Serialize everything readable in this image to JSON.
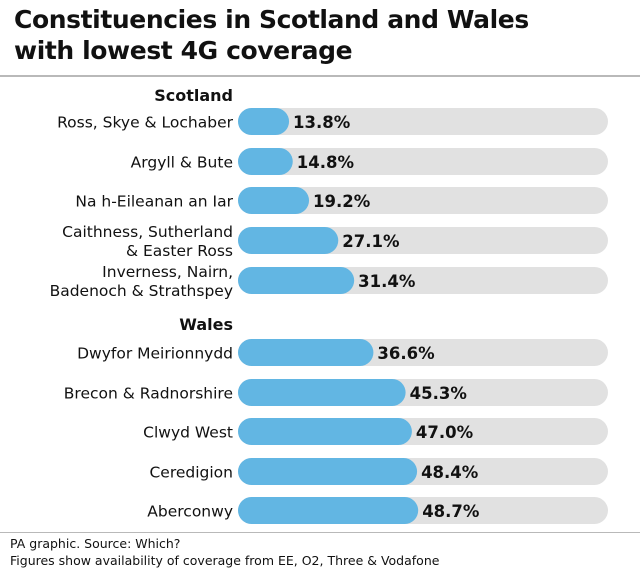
{
  "title_lines": [
    "Constituencies in Scotland and Wales",
    "with lowest 4G coverage"
  ],
  "footnotes": [
    "PA graphic. Source: Which?",
    "Figures show availability of coverage from EE, O2, Three & Vodafone"
  ],
  "colors": {
    "bar": "#62b6e3",
    "track": "#e1e1e1",
    "text": "#111111",
    "rule": "#b9b9b9"
  },
  "chart_data": {
    "type": "bar",
    "orientation": "horizontal",
    "xlim": [
      0,
      100
    ],
    "unit": "%",
    "grid": false,
    "legend": "none",
    "groups": [
      {
        "name": "Scotland",
        "items": [
          {
            "label": [
              "Ross, Skye & Lochaber"
            ],
            "value": 13.8,
            "value_label": "13.8%"
          },
          {
            "label": [
              "Argyll & Bute"
            ],
            "value": 14.8,
            "value_label": "14.8%"
          },
          {
            "label": [
              "Na h-Eileanan an Iar"
            ],
            "value": 19.2,
            "value_label": "19.2%"
          },
          {
            "label": [
              "Caithness, Sutherland",
              "& Easter Ross"
            ],
            "value": 27.1,
            "value_label": "27.1%"
          },
          {
            "label": [
              "Inverness, Nairn,",
              "Badenoch & Strathspey"
            ],
            "value": 31.4,
            "value_label": "31.4%"
          }
        ]
      },
      {
        "name": "Wales",
        "items": [
          {
            "label": [
              "Dwyfor Meirionnydd"
            ],
            "value": 36.6,
            "value_label": "36.6%"
          },
          {
            "label": [
              "Brecon & Radnorshire"
            ],
            "value": 45.3,
            "value_label": "45.3%"
          },
          {
            "label": [
              "Clwyd West"
            ],
            "value": 47.0,
            "value_label": "47.0%"
          },
          {
            "label": [
              "Ceredigion"
            ],
            "value": 48.4,
            "value_label": "48.4%"
          },
          {
            "label": [
              "Aberconwy"
            ],
            "value": 48.7,
            "value_label": "48.7%"
          }
        ]
      }
    ]
  }
}
